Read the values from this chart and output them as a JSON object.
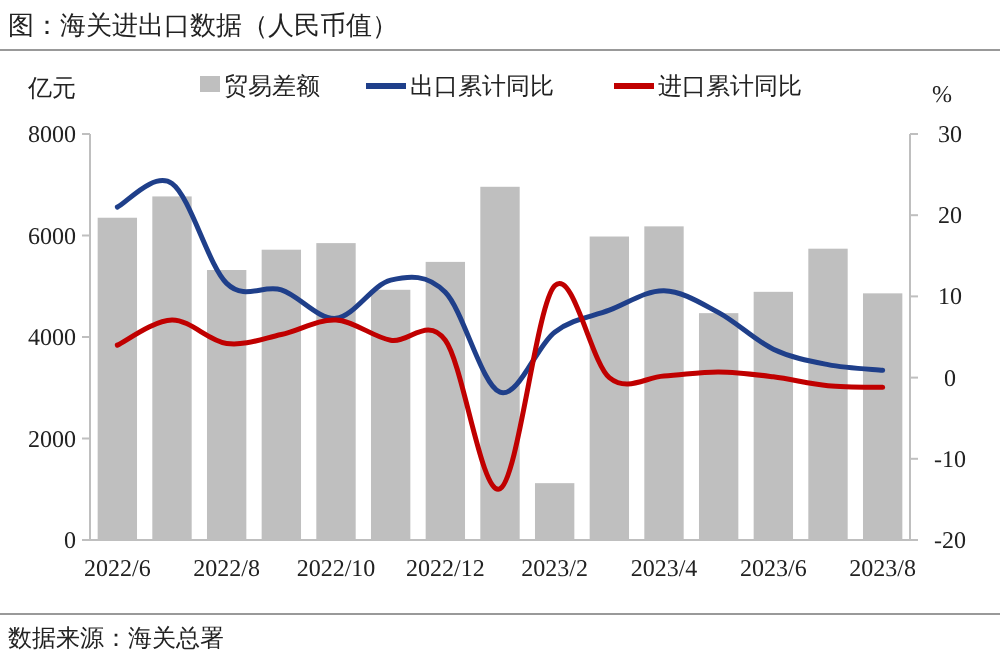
{
  "chart_data": {
    "type": "bar",
    "title": "图：海关进出口数据（人民币值）",
    "ylabel": "亿元",
    "y2label": "%",
    "categories": [
      "2022/6",
      null,
      "2022/8",
      null,
      "2022/10",
      null,
      "2022/12",
      null,
      "2023/2",
      null,
      "2023/4",
      null,
      "2023/6",
      null,
      "2023/8"
    ],
    "series": [
      {
        "name": "贸易差额",
        "color": "#bfbfbf",
        "values": [
          6350,
          6770,
          5320,
          5720,
          5850,
          4930,
          5480,
          6960,
          1120,
          5980,
          6180,
          4470,
          4890,
          5740,
          4860
        ]
      },
      {
        "name": "出口累计同比",
        "type": "line",
        "axis": "y2",
        "color": "#1f3f8a",
        "values": [
          21.0,
          23.9,
          11.6,
          10.8,
          7.3,
          12.0,
          10.5,
          -1.8,
          5.6,
          8.3,
          10.7,
          8.0,
          3.5,
          1.6,
          0.9
        ]
      },
      {
        "name": "进口累计同比",
        "type": "line",
        "axis": "y2",
        "color": "#c00000",
        "values": [
          4.0,
          7.1,
          4.2,
          5.3,
          7.1,
          4.6,
          4.6,
          -13.7,
          11.3,
          0.0,
          0.2,
          0.7,
          0.1,
          -1.0,
          -1.2
        ]
      }
    ],
    "ylim": [
      0,
      8000
    ],
    "yticks": [
      0,
      2000,
      4000,
      6000,
      8000
    ],
    "y2lim": [
      -20,
      30
    ],
    "y2ticks": [
      -20,
      -10,
      0,
      10,
      20,
      30
    ],
    "legend": "top",
    "grid": false,
    "annotations": [
      "数据来源：海关总署"
    ]
  }
}
